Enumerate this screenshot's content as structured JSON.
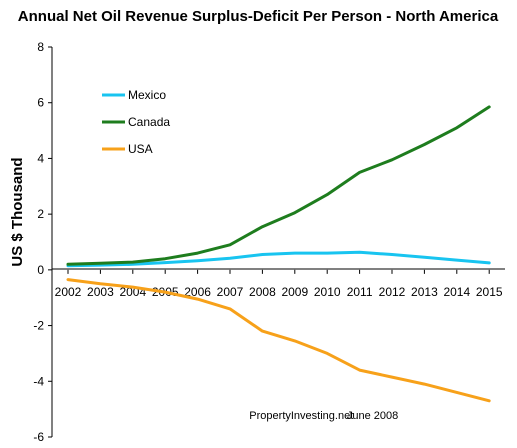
{
  "chart_data": {
    "type": "line",
    "title": "Annual Net Oil Revenue Surplus-Deficit Per Person - North America",
    "xlabel": "",
    "ylabel": "US $ Thousand",
    "x": [
      2002,
      2003,
      2004,
      2005,
      2006,
      2007,
      2008,
      2009,
      2010,
      2011,
      2012,
      2013,
      2014,
      2015
    ],
    "ylim": [
      -6,
      8
    ],
    "yticks": [
      -6,
      -4,
      -2,
      0,
      2,
      4,
      6,
      8
    ],
    "ytick_labels": [
      "-6",
      "-4",
      "-2",
      "0",
      "2",
      "4",
      "6",
      "8"
    ],
    "grid": false,
    "legend_position": "top-left",
    "series": [
      {
        "name": "Mexico",
        "color": "#18c4f0",
        "values": [
          0.15,
          0.17,
          0.2,
          0.26,
          0.33,
          0.42,
          0.55,
          0.6,
          0.6,
          0.63,
          0.55,
          0.45,
          0.35,
          0.25
        ]
      },
      {
        "name": "Canada",
        "color": "#1e7d1e",
        "values": [
          0.2,
          0.24,
          0.28,
          0.4,
          0.6,
          0.9,
          1.55,
          2.05,
          2.7,
          3.5,
          3.95,
          4.5,
          5.1,
          5.85
        ]
      },
      {
        "name": "USA",
        "color": "#f7a11a",
        "values": [
          -0.35,
          -0.5,
          -0.62,
          -0.8,
          -1.05,
          -1.4,
          -2.2,
          -2.55,
          -3.0,
          -3.6,
          -3.85,
          -4.1,
          -4.4,
          -4.7
        ]
      }
    ],
    "annotations": [
      {
        "text": "PropertyInvesting.net",
        "x": 2009.2,
        "y": -5.35
      },
      {
        "text": "June 2008",
        "x": 2011.4,
        "y": -5.35
      }
    ]
  }
}
